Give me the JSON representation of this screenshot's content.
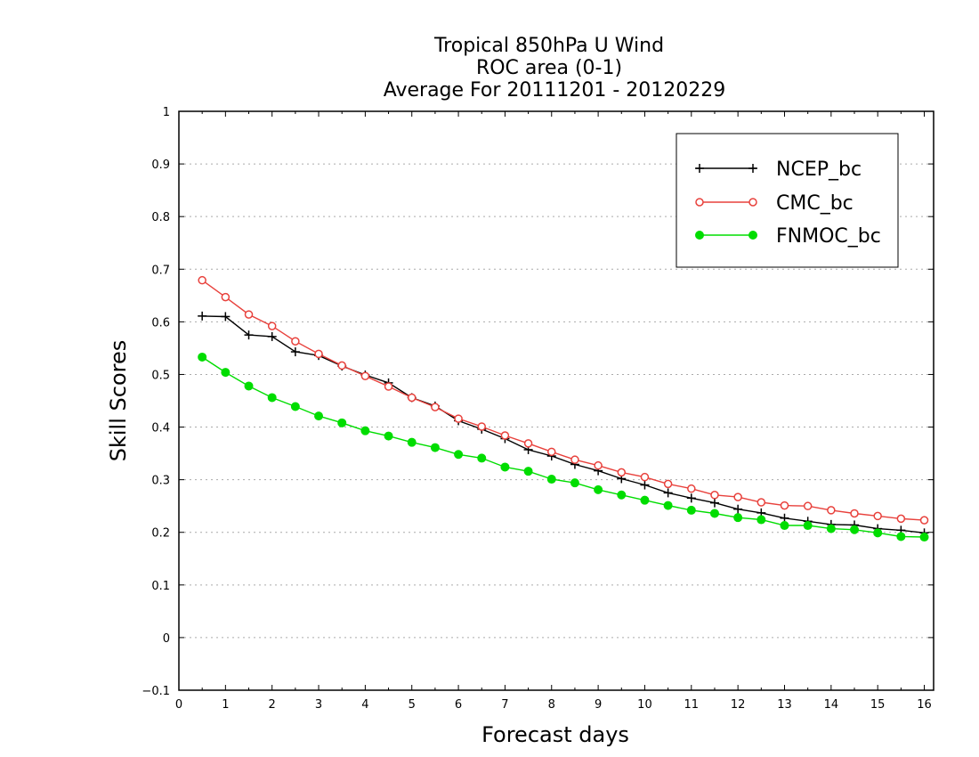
{
  "chart_data": {
    "type": "line",
    "title_lines": [
      "Tropical 850hPa U Wind",
      "ROC area (0-1)",
      "Average For 20111201 - 20120229"
    ],
    "xlabel": "Forecast days",
    "ylabel": "Skill Scores",
    "xlim": [
      0,
      16.2
    ],
    "ylim": [
      -0.1,
      1
    ],
    "x_ticks": [
      "0",
      "1",
      "2",
      "3",
      "4",
      "5",
      "6",
      "7",
      "8",
      "9",
      "10",
      "11",
      "12",
      "13",
      "14",
      "15",
      "16"
    ],
    "y_ticks": [
      "-0.1",
      "0",
      "0.1",
      "0.2",
      "0.3",
      "0.4",
      "0.5",
      "0.6",
      "0.7",
      "0.8",
      "0.9",
      "1"
    ],
    "grid": true,
    "legend_position": "top-right",
    "x": [
      0.5,
      1,
      1.5,
      2,
      2.5,
      3,
      3.5,
      4,
      4.5,
      5,
      5.5,
      6,
      6.5,
      7,
      7.5,
      8,
      8.5,
      9,
      9.5,
      10,
      10.5,
      11,
      11.5,
      12,
      12.5,
      13,
      13.5,
      14,
      14.5,
      15,
      15.5,
      16
    ],
    "series": [
      {
        "name": "NCEP_bc",
        "color": "#000000",
        "marker": "plus",
        "values": [
          0.611,
          0.61,
          0.575,
          0.572,
          0.543,
          0.536,
          0.516,
          0.499,
          0.484,
          0.456,
          0.44,
          0.412,
          0.396,
          0.378,
          0.357,
          0.345,
          0.329,
          0.317,
          0.302,
          0.29,
          0.275,
          0.265,
          0.256,
          0.244,
          0.237,
          0.227,
          0.221,
          0.215,
          0.214,
          0.207,
          0.204,
          0.199
        ]
      },
      {
        "name": "CMC_bc",
        "color": "#e8413c",
        "marker": "open-circle",
        "values": [
          0.679,
          0.647,
          0.614,
          0.592,
          0.563,
          0.539,
          0.517,
          0.497,
          0.477,
          0.456,
          0.438,
          0.416,
          0.401,
          0.384,
          0.369,
          0.353,
          0.338,
          0.327,
          0.314,
          0.305,
          0.292,
          0.283,
          0.271,
          0.267,
          0.257,
          0.251,
          0.25,
          0.242,
          0.236,
          0.231,
          0.226,
          0.223
        ]
      },
      {
        "name": "FNMOC_bc",
        "color": "#00dd00",
        "marker": "filled-circle",
        "values": [
          0.533,
          0.504,
          0.478,
          0.456,
          0.439,
          0.421,
          0.408,
          0.393,
          0.383,
          0.371,
          0.361,
          0.348,
          0.341,
          0.324,
          0.316,
          0.301,
          0.294,
          0.281,
          0.271,
          0.261,
          0.251,
          0.242,
          0.236,
          0.228,
          0.224,
          0.213,
          0.213,
          0.207,
          0.205,
          0.199,
          0.192,
          0.191
        ]
      }
    ]
  }
}
